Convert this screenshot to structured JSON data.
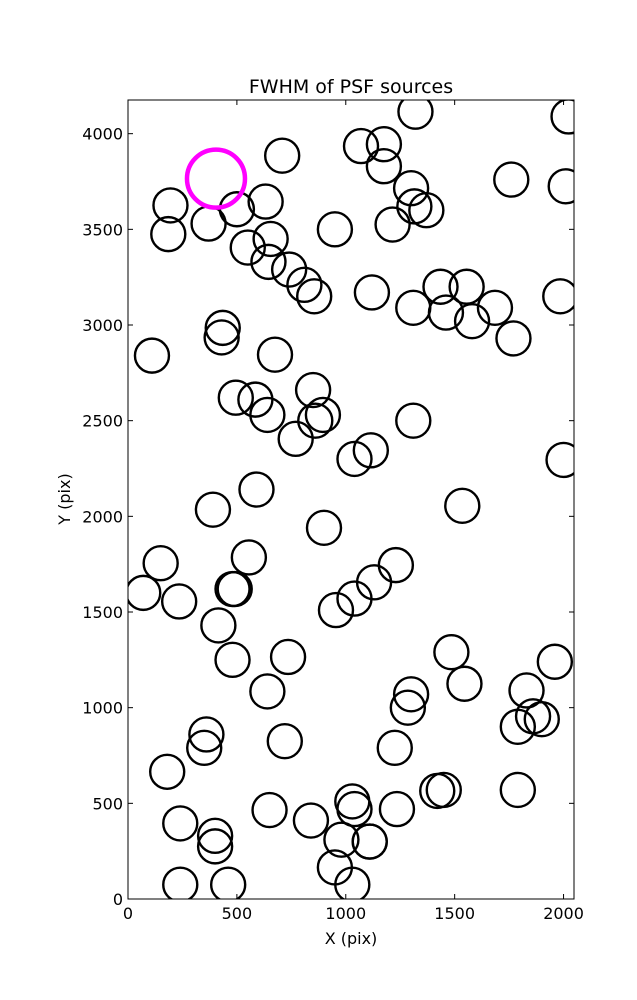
{
  "chart_data": {
    "type": "scatter",
    "title": "FWHM of PSF sources",
    "xlabel": "X (pix)",
    "ylabel": "Y (pix)",
    "xlim": [
      0,
      2048
    ],
    "ylim": [
      0,
      4176
    ],
    "xticks": [
      0,
      500,
      1000,
      1500,
      2000
    ],
    "yticks": [
      0,
      500,
      1000,
      1500,
      2000,
      2500,
      3000,
      3500,
      4000
    ],
    "grid": false,
    "colors": {
      "sources": "#000000",
      "highlight": "#ff00ff"
    },
    "highlight": {
      "x": 404,
      "y": 3765
    },
    "sources": [
      [
        1320,
        4115
      ],
      [
        2023,
        4090
      ],
      [
        1070,
        3935
      ],
      [
        1175,
        3945
      ],
      [
        708,
        3885
      ],
      [
        1175,
        3830
      ],
      [
        1760,
        3760
      ],
      [
        1300,
        3715
      ],
      [
        2010,
        3725
      ],
      [
        195,
        3625
      ],
      [
        185,
        3475
      ],
      [
        370,
        3530
      ],
      [
        500,
        3605
      ],
      [
        632,
        3645
      ],
      [
        1215,
        3525
      ],
      [
        1315,
        3620
      ],
      [
        1370,
        3600
      ],
      [
        950,
        3500
      ],
      [
        550,
        3405
      ],
      [
        655,
        3450
      ],
      [
        645,
        3330
      ],
      [
        740,
        3290
      ],
      [
        810,
        3210
      ],
      [
        855,
        3150
      ],
      [
        1120,
        3170
      ],
      [
        1310,
        3090
      ],
      [
        1435,
        3200
      ],
      [
        1460,
        3065
      ],
      [
        1555,
        3200
      ],
      [
        1580,
        3020
      ],
      [
        1685,
        3090
      ],
      [
        1770,
        2930
      ],
      [
        1985,
        3150
      ],
      [
        110,
        2840
      ],
      [
        435,
        2985
      ],
      [
        430,
        2935
      ],
      [
        675,
        2845
      ],
      [
        495,
        2620
      ],
      [
        585,
        2610
      ],
      [
        640,
        2530
      ],
      [
        850,
        2660
      ],
      [
        860,
        2500
      ],
      [
        895,
        2530
      ],
      [
        770,
        2405
      ],
      [
        1040,
        2300
      ],
      [
        1115,
        2345
      ],
      [
        1310,
        2500
      ],
      [
        2000,
        2295
      ],
      [
        590,
        2140
      ],
      [
        390,
        2035
      ],
      [
        900,
        1940
      ],
      [
        1535,
        2055
      ],
      [
        150,
        1755
      ],
      [
        555,
        1785
      ],
      [
        70,
        1600
      ],
      [
        235,
        1555
      ],
      [
        480,
        1620
      ],
      [
        415,
        1430
      ],
      [
        490,
        1620
      ],
      [
        955,
        1510
      ],
      [
        1040,
        1570
      ],
      [
        1130,
        1655
      ],
      [
        1230,
        1745
      ],
      [
        480,
        1250
      ],
      [
        735,
        1265
      ],
      [
        640,
        1085
      ],
      [
        1485,
        1290
      ],
      [
        1545,
        1125
      ],
      [
        1960,
        1240
      ],
      [
        1285,
        1000
      ],
      [
        1300,
        1070
      ],
      [
        1225,
        790
      ],
      [
        1790,
        900
      ],
      [
        1830,
        1090
      ],
      [
        1860,
        955
      ],
      [
        1900,
        940
      ],
      [
        360,
        860
      ],
      [
        350,
        790
      ],
      [
        720,
        825
      ],
      [
        180,
        665
      ],
      [
        240,
        395
      ],
      [
        400,
        330
      ],
      [
        400,
        275
      ],
      [
        240,
        75
      ],
      [
        460,
        75
      ],
      [
        650,
        465
      ],
      [
        840,
        410
      ],
      [
        950,
        165
      ],
      [
        980,
        310
      ],
      [
        1030,
        510
      ],
      [
        1040,
        470
      ],
      [
        1110,
        300
      ],
      [
        1030,
        75
      ],
      [
        1235,
        470
      ],
      [
        1420,
        565
      ],
      [
        1790,
        570
      ],
      [
        1450,
        570
      ],
      [
        1110,
        300
      ]
    ]
  }
}
